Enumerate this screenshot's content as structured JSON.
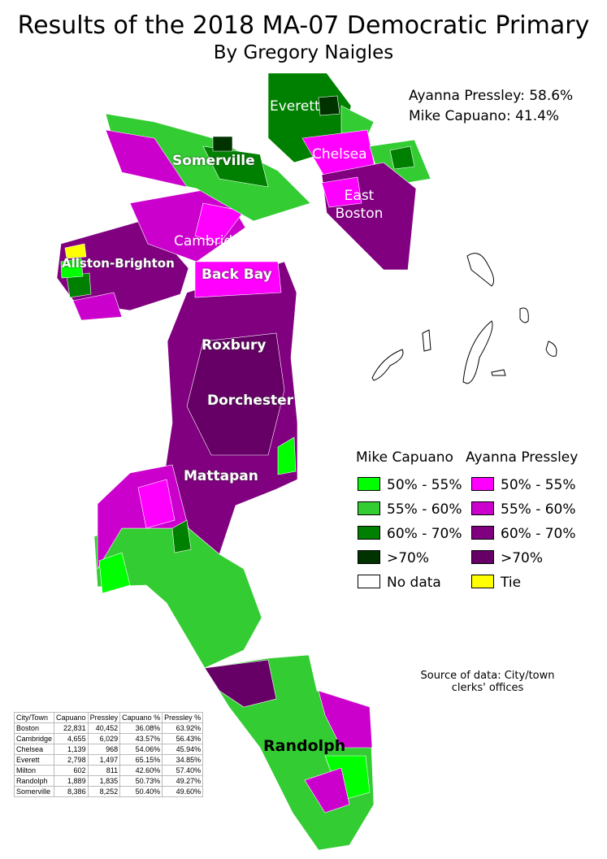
{
  "title": "Results of the 2018 MA-07 Democratic Primary",
  "subtitle": "By Gregory Naigles",
  "summary": [
    "Ayanna Pressley: 58.6%",
    "Mike Capuano: 41.4%"
  ],
  "map_labels": [
    "Everett",
    "Chelsea",
    "Somerville",
    "East Boston",
    "Cambridge",
    "Allston-Brighton",
    "Back Bay",
    "Roxbury",
    "Dorchester",
    "Mattapan",
    "Randolph"
  ],
  "legend": {
    "columns": [
      {
        "name": "Mike Capuano",
        "items": [
          {
            "label": "50% - 55%",
            "color": "#00ff00"
          },
          {
            "label": "55% - 60%",
            "color": "#33cc33"
          },
          {
            "label": "60% - 70%",
            "color": "#008000"
          },
          {
            "label": ">70%",
            "color": "#003300"
          },
          {
            "label": "No data",
            "color": "#ffffff"
          }
        ]
      },
      {
        "name": "Ayanna Pressley",
        "items": [
          {
            "label": "50% - 55%",
            "color": "#ff00ff"
          },
          {
            "label": "55% - 60%",
            "color": "#cc00cc"
          },
          {
            "label": "60% - 70%",
            "color": "#800080"
          },
          {
            "label": ">70%",
            "color": "#660066"
          },
          {
            "label": "Tie",
            "color": "#ffff00"
          }
        ]
      }
    ]
  },
  "source": "Source of data: City/town clerks' offices",
  "table": {
    "header": [
      "City/Town",
      "Capuano",
      "Pressley",
      "Capuano %",
      "Pressley %"
    ],
    "rows": [
      [
        "Boston",
        "22,831",
        "40,452",
        "36.08%",
        "63.92%"
      ],
      [
        "Cambridge",
        "4,655",
        "6,029",
        "43.57%",
        "56.43%"
      ],
      [
        "Chelsea",
        "1,139",
        "968",
        "54.06%",
        "45.94%"
      ],
      [
        "Everett",
        "2,798",
        "1,497",
        "65.15%",
        "34.85%"
      ],
      [
        "Milton",
        "602",
        "811",
        "42.60%",
        "57.40%"
      ],
      [
        "Randolph",
        "1,889",
        "1,835",
        "50.73%",
        "49.27%"
      ],
      [
        "Somerville",
        "8,386",
        "8,252",
        "50.40%",
        "49.60%"
      ]
    ]
  }
}
